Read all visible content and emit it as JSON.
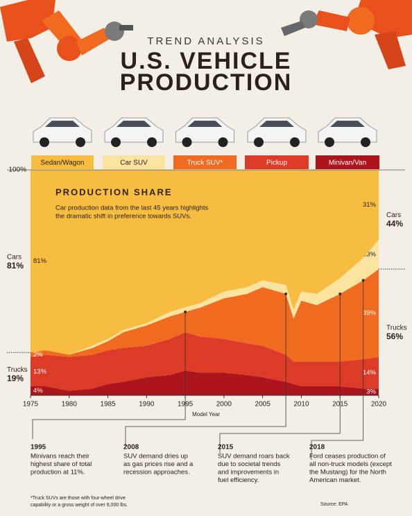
{
  "header": {
    "kicker": "TREND ANALYSIS",
    "title_lines": [
      "U.S. VEHICLE",
      "PRODUCTION"
    ]
  },
  "chart_data": {
    "type": "stacked-area",
    "title": "PRODUCTION SHARE",
    "subtitle_lines": [
      "Car production data from the last 45 years highlights",
      "the dramatic shift in preference towards SUVs."
    ],
    "x_label": "Model Year",
    "x": [
      1975,
      1977,
      1980,
      1983,
      1985,
      1987,
      1990,
      1993,
      1995,
      1997,
      2000,
      2003,
      2005,
      2008,
      2009,
      2010,
      2012,
      2015,
      2018,
      2020
    ],
    "xlim": [
      1975,
      2020
    ],
    "xticks": [
      1975,
      1980,
      1985,
      1990,
      1995,
      2000,
      2005,
      2010,
      2015,
      2020
    ],
    "ylim": [
      0,
      100
    ],
    "yticks": [
      {
        "value": 100,
        "label": "100%"
      }
    ],
    "series": [
      {
        "name": "Sedan/Wagon",
        "color": "#f6bd41",
        "values": [
          81,
          80,
          82,
          78,
          75,
          71,
          68,
          63,
          61,
          59,
          54,
          52,
          49,
          51,
          62,
          54,
          55,
          48,
          39,
          31
        ],
        "value_labels": [
          "81%",
          null,
          null,
          null,
          null,
          null,
          null,
          null,
          null,
          null,
          null,
          null,
          null,
          null,
          null,
          null,
          null,
          null,
          null,
          "31%"
        ]
      },
      {
        "name": "Car SUV",
        "color": "#fbe3a0",
        "values": [
          0,
          0,
          0,
          1,
          1,
          1,
          1,
          2,
          2,
          2,
          3,
          3,
          3,
          4,
          4,
          4,
          5,
          7,
          10,
          13
        ],
        "value_labels": [
          null,
          null,
          null,
          null,
          null,
          null,
          null,
          null,
          null,
          null,
          null,
          null,
          null,
          null,
          null,
          null,
          null,
          null,
          null,
          "13%"
        ]
      },
      {
        "name": "Truck SUV*",
        "color": "#f06a1f",
        "values": [
          2,
          2,
          1,
          3,
          4,
          7,
          9,
          10,
          9,
          13,
          18,
          22,
          26,
          27,
          19,
          27,
          25,
          30,
          35,
          39
        ],
        "value_labels": [
          "2%",
          null,
          null,
          null,
          null,
          null,
          null,
          null,
          null,
          null,
          null,
          null,
          null,
          null,
          null,
          null,
          null,
          null,
          null,
          "39%"
        ]
      },
      {
        "name": "Pickup",
        "color": "#dc3b27",
        "values": [
          13,
          14,
          15,
          15,
          15,
          15,
          14,
          16,
          17,
          16,
          15,
          14,
          14,
          12,
          10,
          11,
          11,
          11,
          13,
          14
        ],
        "value_labels": [
          "13%",
          null,
          null,
          null,
          null,
          null,
          null,
          null,
          null,
          null,
          null,
          null,
          null,
          null,
          null,
          null,
          null,
          null,
          null,
          "14%"
        ]
      },
      {
        "name": "Minivan/Van",
        "color": "#ac151c",
        "values": [
          4,
          4,
          2,
          3,
          5,
          6,
          8,
          9,
          11,
          10,
          10,
          9,
          8,
          6,
          5,
          4,
          4,
          4,
          3,
          3
        ],
        "value_labels": [
          "4%",
          null,
          null,
          null,
          null,
          null,
          null,
          null,
          null,
          null,
          null,
          null,
          null,
          null,
          null,
          null,
          null,
          null,
          null,
          "3%"
        ]
      }
    ],
    "groups": [
      {
        "name": "Cars",
        "start": {
          "value": 81,
          "label": "81%"
        },
        "end": {
          "value": 44,
          "label": "44%"
        }
      },
      {
        "name": "Trucks",
        "start": {
          "value": 19,
          "label": "19%"
        },
        "end": {
          "value": 56,
          "label": "56%"
        }
      }
    ],
    "annotations": [
      {
        "year": 1995,
        "lines": [
          "Minivans reach their",
          "highest share of total",
          "production at 11%."
        ]
      },
      {
        "year": 2008,
        "lines": [
          "SUV demand dries up",
          "as gas prices rise and a",
          "recession approaches."
        ]
      },
      {
        "year": 2015,
        "lines": [
          "SUV demand roars back",
          "due to societal trends",
          "and improvements in",
          "fuel efficiency."
        ]
      },
      {
        "year": 2018,
        "lines": [
          "Ford ceases production of",
          "all non-truck models (except",
          "the Mustang) for the North",
          "American market."
        ]
      }
    ],
    "footnote_lines": [
      "*Truck SUVs are those with four-wheel drive",
      "capability or a gross weight of over 6,000 lbs."
    ],
    "source": "Source: EPA"
  }
}
